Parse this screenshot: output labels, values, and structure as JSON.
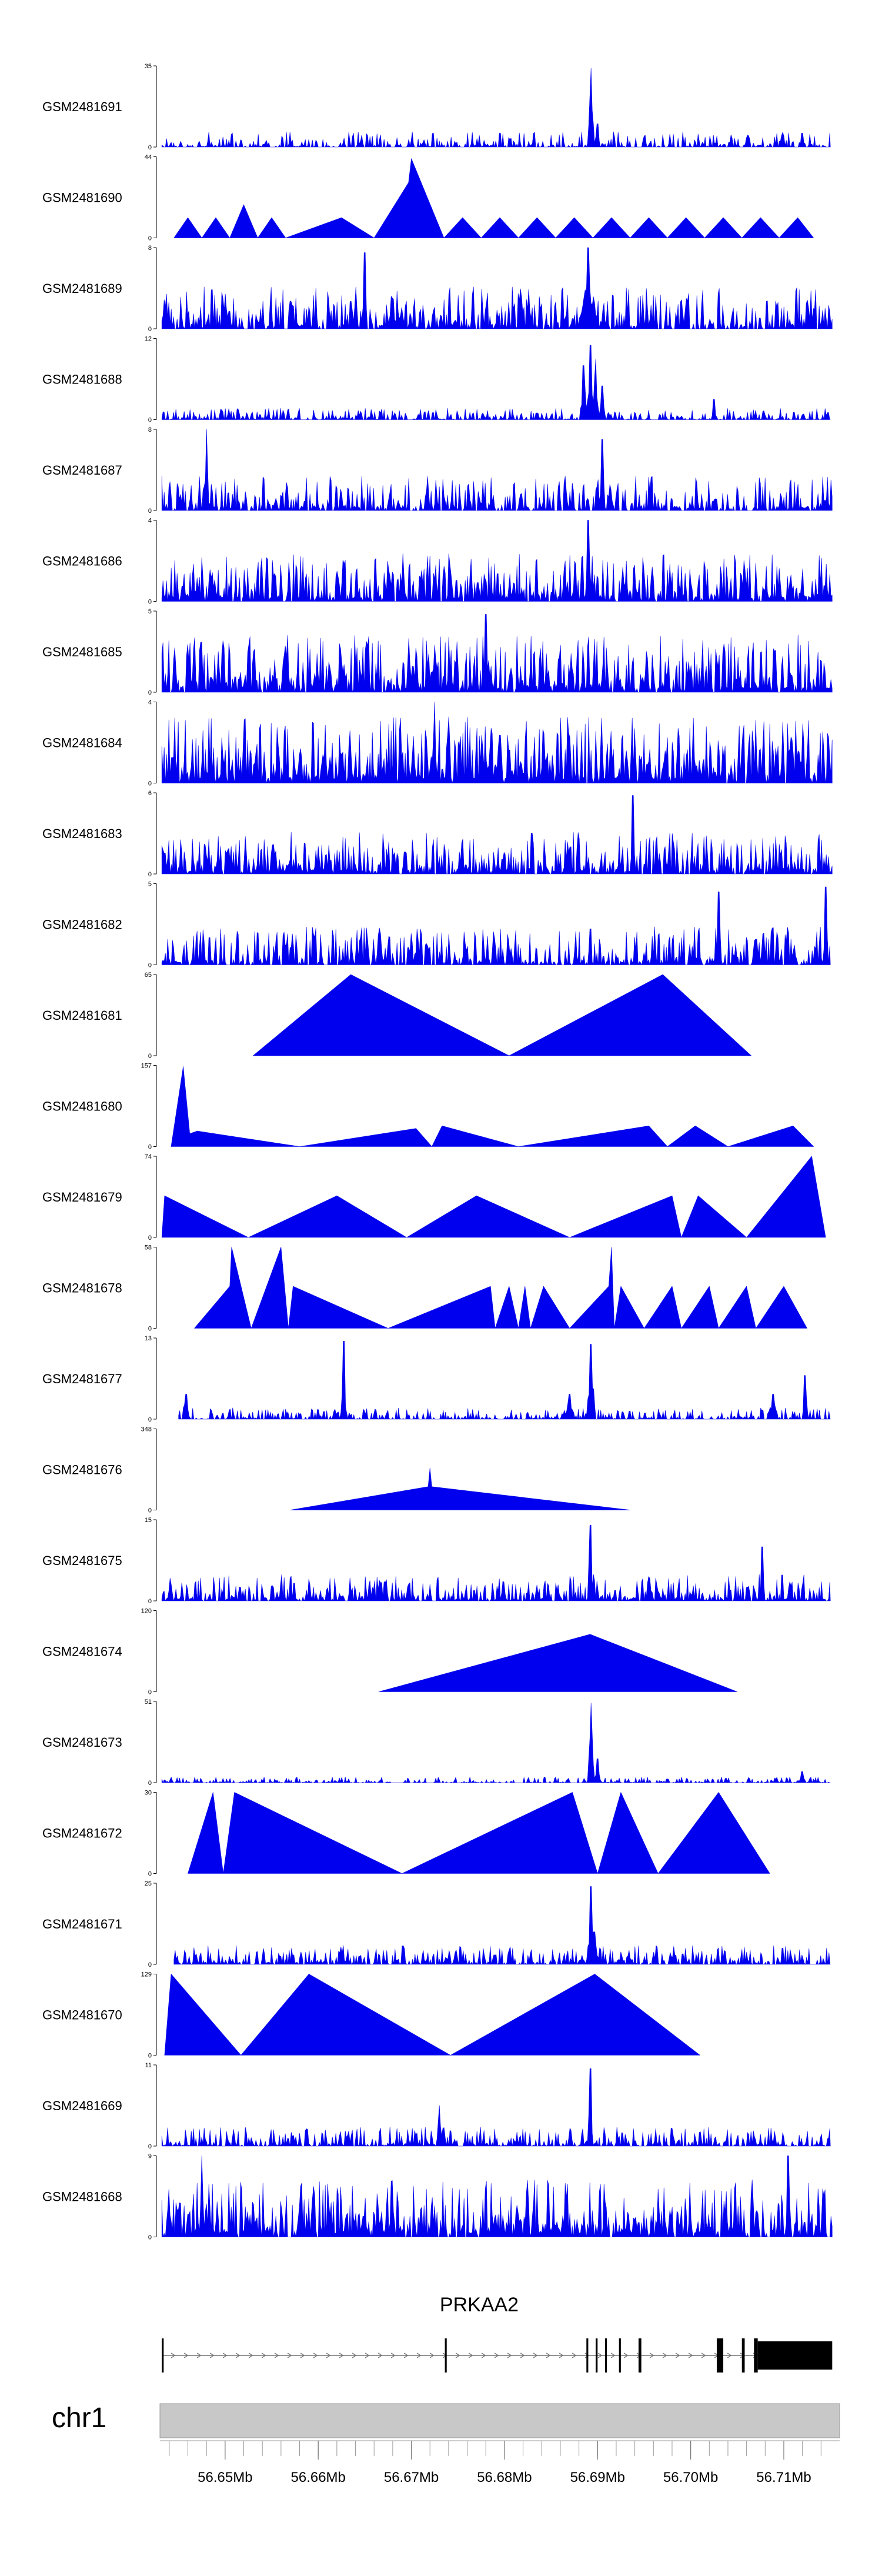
{
  "chart_data": {
    "type": "area",
    "title": "",
    "colors": {
      "signal": "#0000ee",
      "axis": "#000000",
      "ideogram": "#c8c8c8",
      "gene": "#000000"
    },
    "xlim": [
      56.643,
      56.716
    ],
    "x_ticks": [
      {
        "pos": 56.65,
        "label": "56.65Mb"
      },
      {
        "pos": 56.66,
        "label": "56.66Mb"
      },
      {
        "pos": 56.67,
        "label": "56.67Mb"
      },
      {
        "pos": 56.68,
        "label": "56.68Mb"
      },
      {
        "pos": 56.69,
        "label": "56.69Mb"
      },
      {
        "pos": 56.7,
        "label": "56.70Mb"
      },
      {
        "pos": 56.71,
        "label": "56.71Mb"
      }
    ],
    "chromosome": "chr1",
    "gene": {
      "name": "PRKAA2",
      "strand": "+",
      "start": 56.6432,
      "end": 56.7152,
      "exons": [
        [
          56.6432,
          56.6434
        ],
        [
          56.6736,
          56.6738
        ],
        [
          56.6888,
          56.689
        ],
        [
          56.6898,
          56.69
        ],
        [
          56.6908,
          56.691
        ],
        [
          56.6923,
          56.6925
        ],
        [
          56.6944,
          56.6947
        ],
        [
          56.7028,
          56.7035
        ],
        [
          56.7055,
          56.7058
        ],
        [
          56.7068,
          56.7072
        ],
        [
          56.7072,
          56.7152
        ]
      ]
    },
    "tracks": [
      {
        "name": "GSM2481691",
        "ymax": 35,
        "style": "dense",
        "seed": 11,
        "base": 0.08,
        "dens": 0.6,
        "x0": 56.6432,
        "x1": 56.715,
        "peaks": [
          [
            56.6893,
            34,
            0.0004
          ],
          [
            56.69,
            10,
            0.0003
          ],
          [
            56.712,
            6,
            0.0003
          ]
        ]
      },
      {
        "name": "GSM2481690",
        "ymax": 44,
        "style": "tri",
        "points": [
          [
            56.6445,
            0
          ],
          [
            56.646,
            11
          ],
          [
            56.6475,
            0
          ],
          [
            56.649,
            11
          ],
          [
            56.6505,
            0
          ],
          [
            56.652,
            18
          ],
          [
            56.6535,
            0
          ],
          [
            56.655,
            11
          ],
          [
            56.6565,
            0
          ],
          [
            56.6625,
            11
          ],
          [
            56.666,
            0
          ],
          [
            56.6697,
            30
          ],
          [
            56.67,
            43
          ],
          [
            56.6735,
            0
          ],
          [
            56.6755,
            11
          ],
          [
            56.6775,
            0
          ],
          [
            56.6795,
            11
          ],
          [
            56.6815,
            0
          ],
          [
            56.6835,
            11
          ],
          [
            56.6855,
            0
          ],
          [
            56.6875,
            11
          ],
          [
            56.6895,
            0
          ],
          [
            56.6915,
            11
          ],
          [
            56.6935,
            0
          ],
          [
            56.6955,
            11
          ],
          [
            56.6975,
            0
          ],
          [
            56.6995,
            11
          ],
          [
            56.7015,
            0
          ],
          [
            56.7035,
            11
          ],
          [
            56.7055,
            0
          ],
          [
            56.7075,
            11
          ],
          [
            56.7095,
            0
          ],
          [
            56.7115,
            11
          ],
          [
            56.7132,
            0
          ]
        ]
      },
      {
        "name": "GSM2481689",
        "ymax": 8,
        "style": "dense",
        "seed": 23,
        "base": 0.22,
        "dens": 0.75,
        "x0": 56.6432,
        "x1": 56.7152,
        "peaks": [
          [
            56.665,
            7.5,
            0.0003
          ],
          [
            56.689,
            8,
            0.0004
          ],
          [
            56.689,
            6,
            0.0012
          ]
        ]
      },
      {
        "name": "GSM2481688",
        "ymax": 12,
        "style": "dense",
        "seed": 31,
        "base": 0.06,
        "dens": 0.6,
        "x0": 56.6432,
        "x1": 56.715,
        "peaks": [
          [
            56.6885,
            8,
            0.0004
          ],
          [
            56.6892,
            11,
            0.0004
          ],
          [
            56.6898,
            9,
            0.0004
          ],
          [
            56.6905,
            5,
            0.0004
          ],
          [
            56.7025,
            3,
            0.0003
          ]
        ]
      },
      {
        "name": "GSM2481687",
        "ymax": 8,
        "style": "dense",
        "seed": 41,
        "base": 0.18,
        "dens": 0.7,
        "x0": 56.6432,
        "x1": 56.7152,
        "peaks": [
          [
            56.648,
            8,
            0.0003
          ],
          [
            56.6905,
            7,
            0.0003
          ]
        ]
      },
      {
        "name": "GSM2481686",
        "ymax": 4,
        "style": "dense",
        "seed": 53,
        "base": 0.25,
        "dens": 0.8,
        "x0": 56.6432,
        "x1": 56.7152,
        "peaks": [
          [
            56.689,
            4,
            0.0003
          ]
        ]
      },
      {
        "name": "GSM2481685",
        "ymax": 5,
        "style": "dense",
        "seed": 61,
        "base": 0.3,
        "dens": 0.85,
        "x0": 56.6432,
        "x1": 56.7152,
        "peaks": [
          [
            56.678,
            4.8,
            0.0003
          ]
        ]
      },
      {
        "name": "GSM2481684",
        "ymax": 4,
        "style": "dense",
        "seed": 71,
        "base": 0.35,
        "dens": 0.88,
        "x0": 56.6432,
        "x1": 56.7152,
        "peaks": [
          [
            56.6725,
            4,
            0.0003
          ]
        ]
      },
      {
        "name": "GSM2481683",
        "ymax": 6,
        "style": "dense",
        "seed": 83,
        "base": 0.22,
        "dens": 0.8,
        "x0": 56.6432,
        "x1": 56.7152,
        "peaks": [
          [
            56.6938,
            5.8,
            0.0003
          ]
        ]
      },
      {
        "name": "GSM2481682",
        "ymax": 5,
        "style": "dense",
        "seed": 97,
        "base": 0.2,
        "dens": 0.72,
        "x0": 56.6432,
        "x1": 56.715,
        "peaks": [
          [
            56.703,
            4.5,
            0.0003
          ],
          [
            56.7145,
            4.8,
            0.0003
          ]
        ]
      },
      {
        "name": "GSM2481681",
        "ymax": 65,
        "style": "tri",
        "points": [
          [
            56.653,
            0
          ],
          [
            56.6635,
            65
          ],
          [
            56.6805,
            0
          ],
          [
            56.697,
            65
          ],
          [
            56.7065,
            0
          ]
        ]
      },
      {
        "name": "GSM2481680",
        "ymax": 157,
        "style": "tri",
        "points": [
          [
            56.6442,
            0
          ],
          [
            56.6455,
            155
          ],
          [
            56.6462,
            25
          ],
          [
            56.647,
            30
          ],
          [
            56.658,
            0
          ],
          [
            56.6705,
            35
          ],
          [
            56.6722,
            0
          ],
          [
            56.6733,
            40
          ],
          [
            56.6815,
            0
          ],
          [
            56.6955,
            40
          ],
          [
            56.6975,
            0
          ],
          [
            56.7005,
            40
          ],
          [
            56.704,
            0
          ],
          [
            56.711,
            40
          ],
          [
            56.7132,
            0
          ]
        ]
      },
      {
        "name": "GSM2481679",
        "ymax": 74,
        "style": "tri",
        "points": [
          [
            56.6432,
            0
          ],
          [
            56.6435,
            38
          ],
          [
            56.6525,
            0
          ],
          [
            56.662,
            38
          ],
          [
            56.6695,
            0
          ],
          [
            56.677,
            38
          ],
          [
            56.687,
            0
          ],
          [
            56.698,
            38
          ],
          [
            56.699,
            0
          ],
          [
            56.7008,
            38
          ],
          [
            56.706,
            0
          ],
          [
            56.713,
            74
          ],
          [
            56.7145,
            0
          ]
        ]
      },
      {
        "name": "GSM2481678",
        "ymax": 58,
        "style": "tri",
        "points": [
          [
            56.6467,
            0
          ],
          [
            56.6505,
            30
          ],
          [
            56.6507,
            58
          ],
          [
            56.6528,
            0
          ],
          [
            56.656,
            58
          ],
          [
            56.6568,
            0
          ],
          [
            56.6573,
            30
          ],
          [
            56.6675,
            0
          ],
          [
            56.6785,
            30
          ],
          [
            56.679,
            0
          ],
          [
            56.6805,
            30
          ],
          [
            56.6815,
            0
          ],
          [
            56.6822,
            30
          ],
          [
            56.6828,
            0
          ],
          [
            56.6842,
            30
          ],
          [
            56.687,
            0
          ],
          [
            56.6912,
            30
          ],
          [
            56.6915,
            58
          ],
          [
            56.6918,
            0
          ],
          [
            56.6925,
            30
          ],
          [
            56.695,
            0
          ],
          [
            56.698,
            30
          ],
          [
            56.699,
            0
          ],
          [
            56.702,
            30
          ],
          [
            56.703,
            0
          ],
          [
            56.706,
            30
          ],
          [
            56.707,
            0
          ],
          [
            56.71,
            30
          ],
          [
            56.7125,
            0
          ]
        ]
      },
      {
        "name": "GSM2481677",
        "ymax": 13,
        "style": "dense",
        "seed": 113,
        "base": 0.06,
        "dens": 0.6,
        "x0": 56.645,
        "x1": 56.715,
        "peaks": [
          [
            56.6458,
            4,
            0.0004
          ],
          [
            56.6627,
            12.5,
            0.0003
          ],
          [
            56.687,
            4,
            0.0006
          ],
          [
            56.6893,
            12,
            0.0005
          ],
          [
            56.7088,
            4,
            0.0006
          ],
          [
            56.7123,
            7,
            0.0003
          ]
        ]
      },
      {
        "name": "GSM2481676",
        "ymax": 348,
        "style": "tri",
        "points": [
          [
            56.657,
            0
          ],
          [
            56.6718,
            100
          ],
          [
            56.672,
            180
          ],
          [
            56.6722,
            100
          ],
          [
            56.6935,
            0
          ]
        ]
      },
      {
        "name": "GSM2481675",
        "ymax": 15,
        "style": "dense",
        "seed": 131,
        "base": 0.14,
        "dens": 0.75,
        "x0": 56.6432,
        "x1": 56.715,
        "peaks": [
          [
            56.6892,
            14,
            0.0003
          ],
          [
            56.7077,
            10,
            0.0003
          ]
        ]
      },
      {
        "name": "GSM2481674",
        "ymax": 120,
        "style": "tri",
        "points": [
          [
            56.6665,
            0
          ],
          [
            56.6892,
            85
          ],
          [
            56.705,
            0
          ]
        ]
      },
      {
        "name": "GSM2481673",
        "ymax": 51,
        "style": "dense",
        "seed": 149,
        "base": 0.03,
        "dens": 0.55,
        "x0": 56.6432,
        "x1": 56.715,
        "peaks": [
          [
            56.6893,
            50,
            0.0004
          ],
          [
            56.69,
            15,
            0.0003
          ],
          [
            56.712,
            7,
            0.0004
          ]
        ]
      },
      {
        "name": "GSM2481672",
        "ymax": 30,
        "style": "tri",
        "points": [
          [
            56.646,
            0
          ],
          [
            56.6487,
            30
          ],
          [
            56.6498,
            0
          ],
          [
            56.651,
            30
          ],
          [
            56.669,
            0
          ],
          [
            56.6873,
            30
          ],
          [
            56.69,
            0
          ],
          [
            56.6925,
            30
          ],
          [
            56.6965,
            0
          ],
          [
            56.703,
            30
          ],
          [
            56.7085,
            0
          ]
        ]
      },
      {
        "name": "GSM2481671",
        "ymax": 25,
        "style": "dense",
        "seed": 167,
        "base": 0.1,
        "dens": 0.7,
        "x0": 56.6445,
        "x1": 56.715,
        "peaks": [
          [
            56.6893,
            24,
            0.0003
          ],
          [
            56.6897,
            10,
            0.0005
          ]
        ]
      },
      {
        "name": "GSM2481670",
        "ymax": 129,
        "style": "tri",
        "points": [
          [
            56.6435,
            0
          ],
          [
            56.6442,
            129
          ],
          [
            56.6517,
            0
          ],
          [
            56.659,
            129
          ],
          [
            56.6742,
            0
          ],
          [
            56.6897,
            129
          ],
          [
            56.701,
            0
          ]
        ]
      },
      {
        "name": "GSM2481669",
        "ymax": 11,
        "style": "dense",
        "seed": 181,
        "base": 0.1,
        "dens": 0.7,
        "x0": 56.6432,
        "x1": 56.715,
        "peaks": [
          [
            56.6892,
            10.5,
            0.0003
          ],
          [
            56.673,
            5.5,
            0.0003
          ]
        ]
      },
      {
        "name": "GSM2481668",
        "ymax": 9,
        "style": "dense",
        "seed": 193,
        "base": 0.3,
        "dens": 0.85,
        "x0": 56.6432,
        "x1": 56.7152,
        "peaks": [
          [
            56.6475,
            9,
            0.0003
          ],
          [
            56.7105,
            9,
            0.0003
          ]
        ]
      }
    ]
  }
}
